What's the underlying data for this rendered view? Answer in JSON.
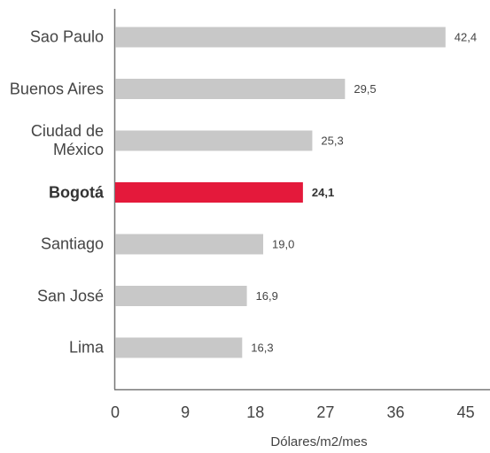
{
  "chart_data": {
    "type": "bar",
    "orientation": "horizontal",
    "categories": [
      "Sao Paulo",
      "Buenos Aires",
      "Ciudad de México",
      "Bogotá",
      "Santiago",
      "San José",
      "Lima"
    ],
    "values": [
      42.4,
      29.5,
      25.3,
      24.1,
      19.0,
      16.9,
      16.3
    ],
    "value_labels": [
      "42,4",
      "29,5",
      "25,3",
      "24,1",
      "19,0",
      "16,9",
      "16,3"
    ],
    "color": "#c8c8c8",
    "highlight": "Bogotá",
    "highlight_color": "#e4193b",
    "x_label": "Dólares/m2/mes",
    "xlim": [
      0,
      48
    ],
    "xticks": [
      0,
      9,
      18,
      27,
      36,
      45
    ],
    "grid": false
  }
}
